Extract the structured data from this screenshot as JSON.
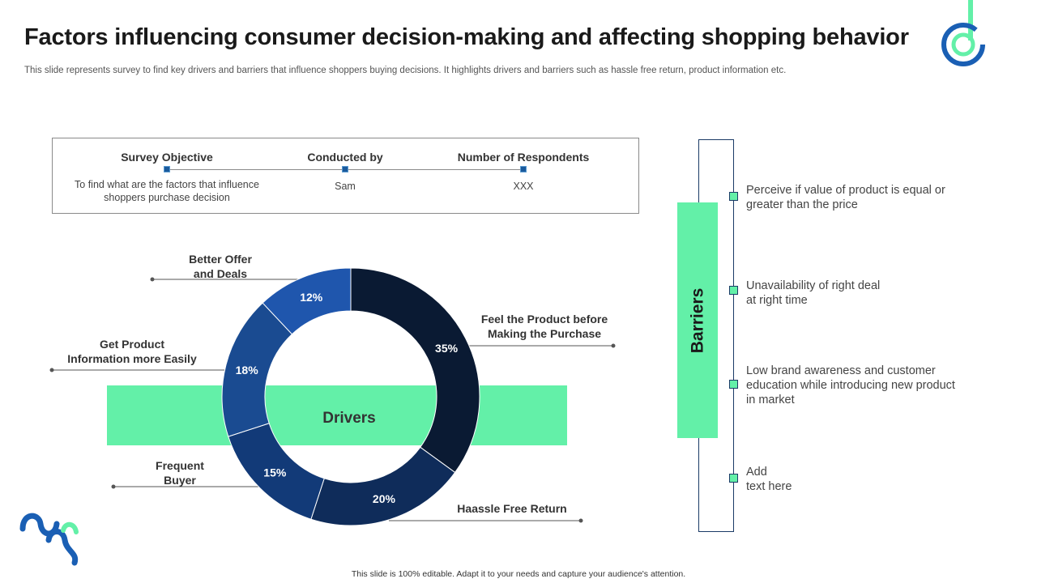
{
  "page": {
    "title": "Factors influencing consumer decision-making and affecting shopping behavior",
    "subtitle": "This slide represents survey to find key drivers and barriers that influence shoppers buying decisions. It highlights drivers and barriers such as hassle free return, product information etc.",
    "footer": "This slide is 100% editable.  Adapt it to your needs and capture your audience's attention."
  },
  "survey": {
    "objective_label": "Survey Objective",
    "objective_value_line1": "To find what are the factors that influence",
    "objective_value_line2": "shoppers purchase decision",
    "conducted_label": "Conducted by",
    "conducted_value": "Sam",
    "respondents_label": "Number of Respondents",
    "respondents_value": "XXX"
  },
  "labels": {
    "better_offer_1": "Better Offer",
    "better_offer_2": "and Deals",
    "product_info_1": "Get Product",
    "product_info_2": "Information more Easily",
    "frequent_1": "Frequent",
    "frequent_2": "Buyer",
    "feel_1": "Feel the Product before",
    "feel_2": "Making the Purchase",
    "hassle": "Haassle Free Return"
  },
  "barriers": {
    "title": "Barriers",
    "items": [
      {
        "line1": "Perceive if value  of product is equal or",
        "line2": "greater than the price",
        "line3": ""
      },
      {
        "line1": "Unavailability  of right deal",
        "line2": "at right time",
        "line3": ""
      },
      {
        "line1": "Low brand awareness and customer",
        "line2": "education while introducing new product",
        "line3": "in market"
      },
      {
        "line1": "Add",
        "line2": "text here",
        "line3": ""
      }
    ]
  },
  "chart_data": {
    "type": "pie",
    "title": "Drivers",
    "categories": [
      "Feel the Product before Making the Purchase",
      "Haassle Free Return",
      "Frequent Buyer",
      "Get Product Information more Easily",
      "Better Offer and Deals"
    ],
    "values": [
      35,
      20,
      15,
      18,
      12
    ],
    "value_labels": [
      "35%",
      "20%",
      "15%",
      "18%",
      "12%"
    ],
    "colors": [
      "#0a1a33",
      "#0f2c5a",
      "#123a78",
      "#1a4b91",
      "#1f56ad"
    ],
    "center_label": "Drivers"
  },
  "colors": {
    "accent_green": "#63f0a8",
    "accent_navy": "#1a3a66"
  }
}
